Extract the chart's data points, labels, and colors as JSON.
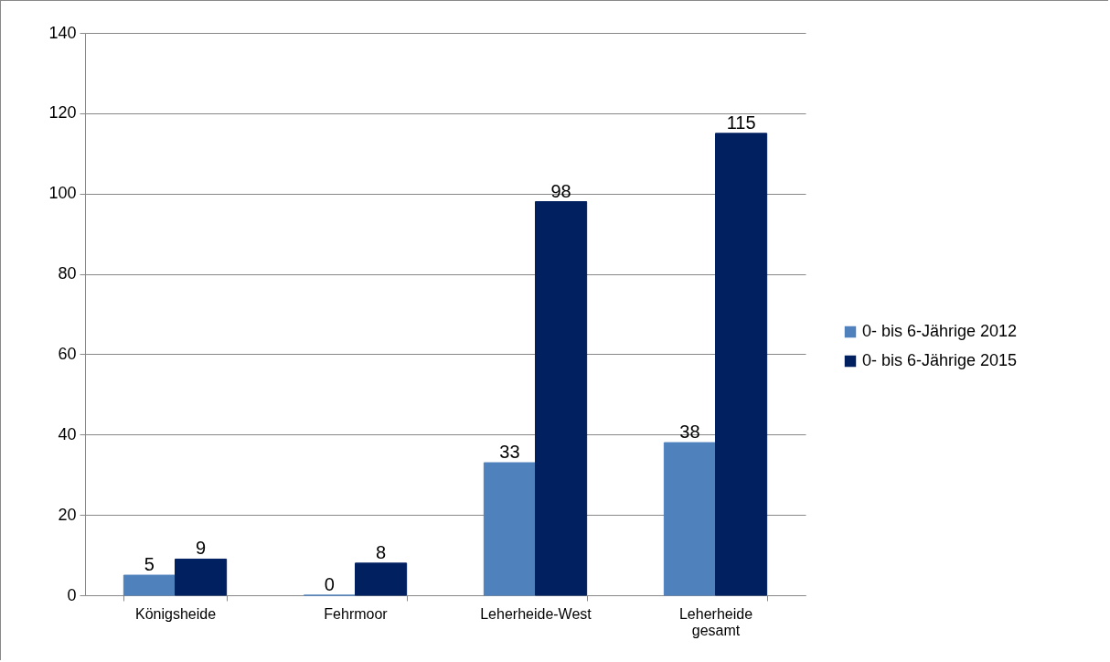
{
  "chart_data": {
    "type": "bar",
    "categories": [
      "Königsheide",
      "Fehrmoor",
      "Leherheide-West",
      "Leherheide gesamt"
    ],
    "series": [
      {
        "name": "0- bis 6-Jährige 2012",
        "color": "#4f81bd",
        "values": [
          5,
          0,
          33,
          38
        ]
      },
      {
        "name": "0- bis 6-Jährige 2015",
        "color": "#002060",
        "values": [
          9,
          8,
          98,
          115
        ]
      }
    ],
    "ylim": [
      0,
      140
    ],
    "yticks": [
      0,
      20,
      40,
      60,
      80,
      100,
      120,
      140
    ],
    "grid": "y",
    "legend": "right",
    "data_labels": true
  }
}
